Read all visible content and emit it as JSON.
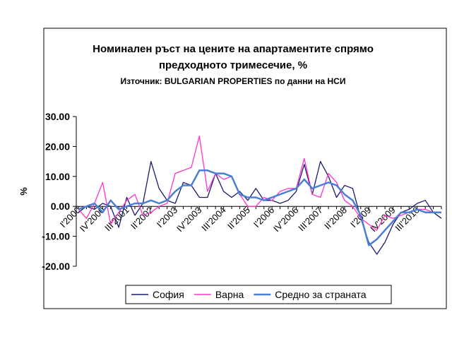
{
  "chart_data": {
    "type": "line",
    "title": "Номинален ръст на цените на апартаментите спрямо",
    "title_line2": "предходното тримесечие, %",
    "subtitle": "Източник: BULGARIAN PROPERTIES по данни на НСИ",
    "ylabel": "%",
    "categories": [
      "I'2000",
      null,
      null,
      "IV'2000",
      null,
      null,
      "III'2001",
      null,
      null,
      "II'2002",
      null,
      null,
      "I'2003",
      null,
      null,
      "IV'2003",
      null,
      null,
      "III'2004",
      null,
      null,
      "II'2005",
      null,
      null,
      "I'2006",
      null,
      null,
      "IV'2006",
      null,
      null,
      "III'2007",
      null,
      null,
      "II'2008",
      null,
      null,
      "I'2009",
      null,
      null,
      "IV'2009",
      null,
      null,
      "III'2010",
      null,
      null,
      null
    ],
    "series": [
      {
        "name": "София",
        "color": "#1a1a6e",
        "values": [
          -2,
          0,
          -1,
          1,
          0,
          -7,
          3,
          -3,
          1,
          15,
          6,
          2,
          1,
          8,
          7,
          3,
          3,
          11,
          5,
          3,
          5,
          2,
          6,
          2,
          2,
          1,
          2,
          5,
          14,
          4,
          15,
          10,
          3,
          7,
          6,
          -4,
          -12,
          -16,
          -12,
          -6,
          -2,
          -1,
          1,
          2,
          -2,
          -4
        ]
      },
      {
        "name": "Варна",
        "color": "#ff33cc",
        "values": [
          -1,
          -4,
          1,
          8,
          -6,
          -2,
          2,
          4,
          -3,
          -2,
          0,
          1,
          11,
          12,
          13,
          23.5,
          5,
          11,
          9,
          10,
          4,
          0,
          0,
          3,
          2,
          5,
          6,
          6,
          16,
          4,
          3,
          11,
          8,
          2,
          0,
          -4,
          -6,
          -8,
          -3,
          -4,
          -3,
          -2,
          -1,
          -1,
          -2,
          -2
        ]
      },
      {
        "name": "Средно за страната",
        "color": "#4a7fd4",
        "values": [
          -1,
          0,
          1,
          -2,
          2,
          -1,
          0,
          1,
          1,
          2,
          1,
          2,
          5,
          7,
          7,
          12,
          12,
          11,
          11,
          10,
          4,
          3,
          3,
          2,
          3,
          4,
          5,
          6,
          9,
          6,
          7,
          8,
          7,
          4,
          2,
          -3,
          -13,
          -11,
          -8,
          -5,
          -2,
          -2,
          -1,
          -2,
          -2,
          -2
        ]
      }
    ],
    "ylim": [
      -20,
      30
    ],
    "yticks": [
      {
        "value": -20,
        "label": "-20.00"
      },
      {
        "value": -10,
        "label": "-10.00"
      },
      {
        "value": 0,
        "label": "0.00"
      },
      {
        "value": 10,
        "label": "10.00"
      },
      {
        "value": 20,
        "label": "20.00"
      },
      {
        "value": 30,
        "label": "30.00"
      }
    ],
    "legend": "bottom"
  }
}
